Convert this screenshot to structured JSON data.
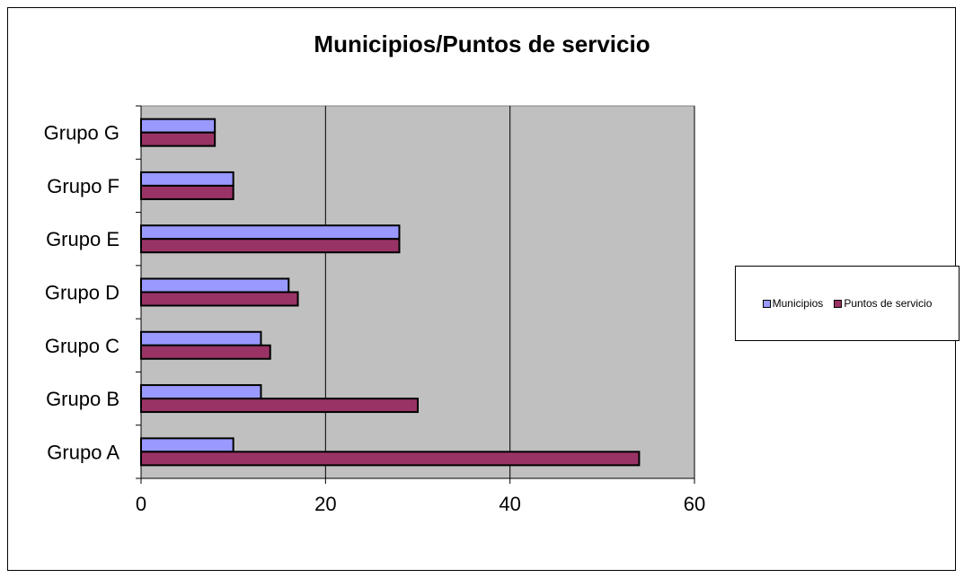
{
  "chart_data": {
    "type": "bar",
    "orientation": "horizontal",
    "title": "Municipios/Puntos de servicio",
    "categories": [
      "Grupo A",
      "Grupo B",
      "Grupo C",
      "Grupo D",
      "Grupo E",
      "Grupo F",
      "Grupo G"
    ],
    "series": [
      {
        "name": "Municipios",
        "color": "#9999ff",
        "values": [
          10,
          13,
          13,
          16,
          28,
          10,
          8
        ]
      },
      {
        "name": "Puntos de servicio",
        "color": "#993366",
        "values": [
          54,
          30,
          14,
          17,
          28,
          10,
          8
        ]
      }
    ],
    "xlim": [
      0,
      60
    ],
    "xticks": [
      0,
      20,
      40,
      60
    ],
    "grid": true,
    "plot_background": "#c0c0c0",
    "legend_position": "right"
  }
}
